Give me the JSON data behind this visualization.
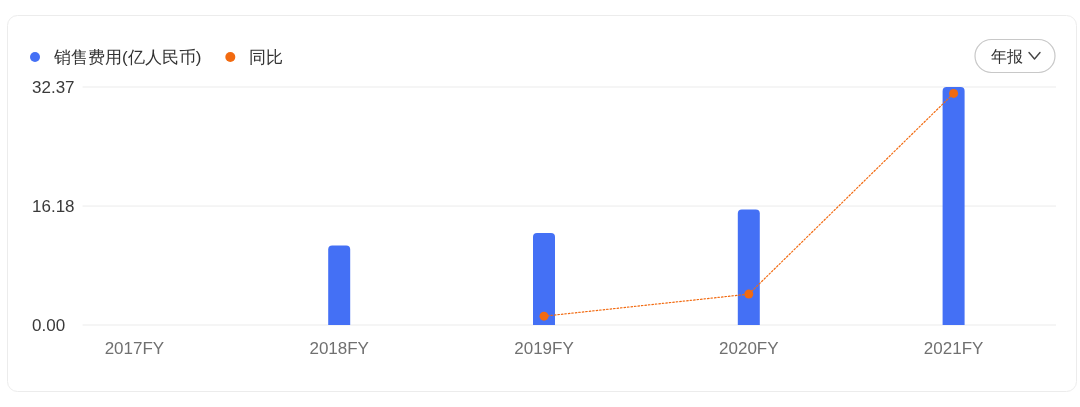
{
  "chart_data": {
    "type": "bar",
    "categories": [
      "2017FY",
      "2018FY",
      "2019FY",
      "2020FY",
      "2021FY"
    ],
    "series": [
      {
        "name": "销售费用(亿人民币)",
        "color": "#4470f5",
        "values": [
          null,
          10.8,
          12.5,
          15.7,
          32.37
        ]
      },
      {
        "name": "同比",
        "type": "line",
        "color": "#f26a10",
        "values": [
          null,
          null,
          1.2,
          4.2,
          31.5
        ]
      }
    ],
    "ylim": [
      0,
      32.37
    ],
    "yticks": [
      {
        "value": 0,
        "label": "0.00"
      },
      16.18,
      32.37
    ],
    "grid": "y",
    "legend": "top left",
    "marker": "circle",
    "line_style": "dotted",
    "annotations": [
      "年报"
    ]
  }
}
